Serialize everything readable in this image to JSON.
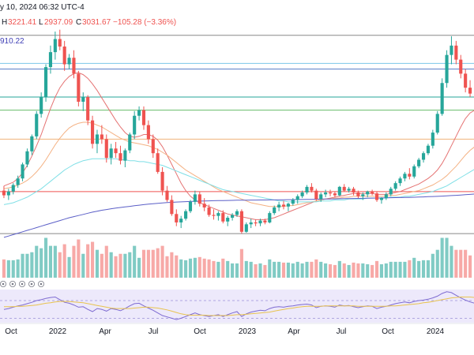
{
  "header": {
    "date_fragment": "y 10, 2024 06:32 UTC-4",
    "h_label": "H",
    "h_value": "3221.41",
    "l_label": "L",
    "l_value": "2937.09",
    "c_label": "C",
    "c_value": "3031.67",
    "change": "−105.28 (−3.36%)",
    "ma_value": "910.22"
  },
  "colors": {
    "up": "#26a69a",
    "down": "#ef5350",
    "vol_up": "#80cbc4",
    "vol_down": "#f7a9a7",
    "ma_red": "#e57373",
    "ma_orange": "#f4b183",
    "ma_cyan": "#7fdfe6",
    "ma_blue": "#5b5fc7",
    "rsi_line": "#7e6bd1",
    "rsi_ma": "#e8c34f",
    "rsi_bg": "#ede9fb"
  },
  "rsi_icons": [
    "eye-icon",
    "eye-icon",
    "eye-icon",
    "eye-icon",
    "eye-icon"
  ],
  "chart_data": {
    "type": "candlestick",
    "title": "",
    "timeframe": "weekly",
    "ylim": [
      1650,
      3800
    ],
    "x_ticks": [
      "Oct",
      "2022",
      "Apr",
      "Jul",
      "Oct",
      "2023",
      "Apr",
      "Jul",
      "Oct",
      "2024"
    ],
    "candles": [
      [
        2100,
        2150,
        2020,
        2050
      ],
      [
        2050,
        2120,
        2000,
        2090
      ],
      [
        2090,
        2180,
        2060,
        2160
      ],
      [
        2160,
        2260,
        2130,
        2230
      ],
      [
        2230,
        2400,
        2200,
        2380
      ],
      [
        2380,
        2550,
        2350,
        2520
      ],
      [
        2520,
        2700,
        2480,
        2680
      ],
      [
        2680,
        2950,
        2650,
        2920
      ],
      [
        2920,
        3150,
        2880,
        3100
      ],
      [
        3100,
        3450,
        3050,
        3420
      ],
      [
        3420,
        3650,
        3350,
        3580
      ],
      [
        3580,
        3800,
        3500,
        3720
      ],
      [
        3720,
        3820,
        3600,
        3640
      ],
      [
        3640,
        3700,
        3380,
        3450
      ],
      [
        3450,
        3560,
        3400,
        3520
      ],
      [
        3520,
        3600,
        3300,
        3350
      ],
      [
        3350,
        3380,
        3000,
        3050
      ],
      [
        3050,
        3150,
        2950,
        3100
      ],
      [
        3100,
        3120,
        2800,
        2850
      ],
      [
        2850,
        2900,
        2550,
        2600
      ],
      [
        2600,
        2750,
        2500,
        2700
      ],
      [
        2700,
        2800,
        2600,
        2650
      ],
      [
        2650,
        2700,
        2400,
        2450
      ],
      [
        2450,
        2600,
        2380,
        2550
      ],
      [
        2550,
        2620,
        2450,
        2500
      ],
      [
        2500,
        2580,
        2380,
        2420
      ],
      [
        2420,
        2550,
        2350,
        2530
      ],
      [
        2530,
        2720,
        2500,
        2700
      ],
      [
        2700,
        2950,
        2650,
        2900
      ],
      [
        2900,
        3000,
        2850,
        2960
      ],
      [
        2960,
        3000,
        2750,
        2800
      ],
      [
        2800,
        2850,
        2600,
        2650
      ],
      [
        2650,
        2700,
        2450,
        2500
      ],
      [
        2500,
        2550,
        2280,
        2300
      ],
      [
        2300,
        2350,
        2050,
        2100
      ],
      [
        2100,
        2150,
        1980,
        2000
      ],
      [
        2000,
        2050,
        1830,
        1850
      ],
      [
        1850,
        1900,
        1720,
        1760
      ],
      [
        1760,
        1830,
        1700,
        1800
      ],
      [
        1800,
        1900,
        1780,
        1880
      ],
      [
        1880,
        2000,
        1860,
        1980
      ],
      [
        1980,
        2100,
        1950,
        2060
      ],
      [
        2060,
        2090,
        1930,
        1960
      ],
      [
        1960,
        2020,
        1880,
        1920
      ],
      [
        1920,
        1950,
        1820,
        1840
      ],
      [
        1840,
        1900,
        1790,
        1830
      ],
      [
        1830,
        1880,
        1780,
        1860
      ],
      [
        1860,
        1890,
        1750,
        1770
      ],
      [
        1770,
        1830,
        1720,
        1810
      ],
      [
        1810,
        1860,
        1780,
        1840
      ],
      [
        1840,
        1900,
        1820,
        1880
      ],
      [
        1880,
        1900,
        1640,
        1660
      ],
      [
        1660,
        1760,
        1650,
        1740
      ],
      [
        1740,
        1800,
        1700,
        1760
      ],
      [
        1760,
        1790,
        1720,
        1750
      ],
      [
        1750,
        1800,
        1720,
        1780
      ],
      [
        1780,
        1800,
        1740,
        1760
      ],
      [
        1760,
        1880,
        1750,
        1860
      ],
      [
        1860,
        1940,
        1840,
        1920
      ],
      [
        1920,
        1980,
        1880,
        1950
      ],
      [
        1950,
        1990,
        1900,
        1930
      ],
      [
        1930,
        1970,
        1880,
        1960
      ],
      [
        1960,
        2020,
        1940,
        2000
      ],
      [
        2000,
        2060,
        1960,
        2040
      ],
      [
        2040,
        2100,
        2020,
        2080
      ],
      [
        2080,
        2160,
        2060,
        2140
      ],
      [
        2140,
        2180,
        2080,
        2100
      ],
      [
        2100,
        2120,
        1990,
        2010
      ],
      [
        2010,
        2080,
        1980,
        2060
      ],
      [
        2060,
        2110,
        2030,
        2080
      ],
      [
        2080,
        2110,
        2040,
        2070
      ],
      [
        2070,
        2090,
        2030,
        2050
      ],
      [
        2050,
        2150,
        2040,
        2140
      ],
      [
        2140,
        2170,
        2090,
        2100
      ],
      [
        2100,
        2140,
        2080,
        2120
      ],
      [
        2120,
        2140,
        2050,
        2080
      ],
      [
        2080,
        2100,
        2020,
        2040
      ],
      [
        2040,
        2080,
        2000,
        2060
      ],
      [
        2060,
        2100,
        2030,
        2090
      ],
      [
        2090,
        2110,
        2050,
        2070
      ],
      [
        2070,
        2090,
        1980,
        2000
      ],
      [
        2000,
        2030,
        1960,
        2020
      ],
      [
        2020,
        2080,
        2000,
        2060
      ],
      [
        2060,
        2140,
        2040,
        2120
      ],
      [
        2120,
        2200,
        2100,
        2180
      ],
      [
        2180,
        2250,
        2150,
        2230
      ],
      [
        2230,
        2300,
        2200,
        2280
      ],
      [
        2280,
        2340,
        2220,
        2250
      ],
      [
        2250,
        2380,
        2230,
        2360
      ],
      [
        2360,
        2450,
        2340,
        2430
      ],
      [
        2430,
        2520,
        2400,
        2500
      ],
      [
        2500,
        2600,
        2480,
        2580
      ],
      [
        2580,
        2750,
        2550,
        2720
      ],
      [
        2720,
        2950,
        2700,
        2920
      ],
      [
        2920,
        3300,
        2900,
        3250
      ],
      [
        3250,
        3600,
        3200,
        3550
      ],
      [
        3550,
        3750,
        3450,
        3650
      ],
      [
        3650,
        3700,
        3450,
        3500
      ],
      [
        3500,
        3550,
        3300,
        3350
      ],
      [
        3350,
        3400,
        3150,
        3200
      ],
      [
        3200,
        3280,
        3100,
        3137
      ]
    ],
    "moving_averages": [
      {
        "color_key": "ma_red",
        "values": [
          2150,
          2170,
          2190,
          2230,
          2290,
          2370,
          2470,
          2580,
          2700,
          2840,
          2980,
          3100,
          3200,
          3270,
          3320,
          3350,
          3360,
          3340,
          3300,
          3240,
          3170,
          3090,
          3010,
          2930,
          2850,
          2780,
          2720,
          2680,
          2670,
          2680,
          2700,
          2700,
          2680,
          2640,
          2570,
          2480,
          2380,
          2280,
          2180,
          2100,
          2040,
          2000,
          1970,
          1950,
          1930,
          1910,
          1890,
          1870,
          1850,
          1840,
          1830,
          1820,
          1810,
          1800,
          1790,
          1790,
          1790,
          1800,
          1810,
          1830,
          1850,
          1870,
          1890,
          1910,
          1930,
          1950,
          1970,
          1990,
          2000,
          2010,
          2020,
          2030,
          2040,
          2050,
          2060,
          2070,
          2070,
          2070,
          2070,
          2070,
          2060,
          2060,
          2060,
          2070,
          2080,
          2090,
          2110,
          2130,
          2150,
          2170,
          2200,
          2230,
          2270,
          2320,
          2390,
          2480,
          2580,
          2680,
          2780,
          2870,
          2930,
          2960
        ]
      },
      {
        "color_key": "ma_orange",
        "values": [
          2120,
          2130,
          2140,
          2160,
          2180,
          2210,
          2250,
          2300,
          2360,
          2430,
          2510,
          2590,
          2660,
          2720,
          2770,
          2800,
          2820,
          2830,
          2830,
          2820,
          2800,
          2780,
          2750,
          2720,
          2690,
          2660,
          2640,
          2620,
          2610,
          2600,
          2590,
          2580,
          2560,
          2540,
          2510,
          2480,
          2440,
          2400,
          2360,
          2320,
          2290,
          2260,
          2230,
          2200,
          2170,
          2140,
          2110,
          2090,
          2070,
          2050,
          2030,
          2010,
          1990,
          1970,
          1960,
          1950,
          1940,
          1930,
          1930,
          1930,
          1930,
          1940,
          1940,
          1950,
          1960,
          1970,
          1980,
          1990,
          2000,
          2010,
          2010,
          2020,
          2020,
          2030,
          2030,
          2040,
          2040,
          2040,
          2040,
          2040,
          2040,
          2040,
          2040,
          2050,
          2050,
          2060,
          2070,
          2080,
          2090,
          2100,
          2120,
          2140,
          2160,
          2190,
          2220,
          2260,
          2310,
          2360,
          2420,
          2480,
          2530,
          2570
        ]
      },
      {
        "color_key": "ma_cyan",
        "values": [
          1950,
          1960,
          1970,
          1990,
          2010,
          2030,
          2060,
          2090,
          2120,
          2160,
          2200,
          2240,
          2280,
          2320,
          2350,
          2380,
          2400,
          2420,
          2430,
          2440,
          2440,
          2440,
          2440,
          2440,
          2440,
          2430,
          2430,
          2420,
          2420,
          2410,
          2410,
          2400,
          2390,
          2380,
          2370,
          2350,
          2330,
          2310,
          2290,
          2270,
          2250,
          2230,
          2210,
          2190,
          2170,
          2150,
          2130,
          2110,
          2100,
          2090,
          2080,
          2070,
          2060,
          2050,
          2040,
          2030,
          2020,
          2010,
          2000,
          1990,
          1990,
          1980,
          1980,
          1980,
          1980,
          1980,
          1980,
          1980,
          1990,
          1990,
          1990,
          2000,
          2000,
          2000,
          2010,
          2010,
          2010,
          2010,
          2020,
          2020,
          2020,
          2020,
          2020,
          2030,
          2030,
          2030,
          2040,
          2040,
          2050,
          2060,
          2070,
          2080,
          2090,
          2110,
          2130,
          2150,
          2180,
          2210,
          2240,
          2270,
          2300,
          2330
        ]
      },
      {
        "color_key": "ma_blue",
        "values": [
          1600,
          1615,
          1630,
          1645,
          1660,
          1675,
          1690,
          1705,
          1720,
          1735,
          1750,
          1765,
          1780,
          1795,
          1810,
          1822,
          1834,
          1846,
          1858,
          1870,
          1880,
          1890,
          1898,
          1906,
          1914,
          1920,
          1926,
          1932,
          1938,
          1944,
          1950,
          1955,
          1960,
          1964,
          1968,
          1972,
          1975,
          1978,
          1980,
          1982,
          1984,
          1986,
          1988,
          1990,
          1991,
          1992,
          1993,
          1994,
          1995,
          1996,
          1997,
          1998,
          1998,
          1999,
          1999,
          2000,
          2000,
          2001,
          2001,
          2002,
          2002,
          2003,
          2003,
          2004,
          2005,
          2006,
          2007,
          2008,
          2009,
          2010,
          2011,
          2012,
          2013,
          2014,
          2015,
          2016,
          2017,
          2018,
          2019,
          2020,
          2021,
          2022,
          2023,
          2024,
          2025,
          2026,
          2027,
          2028,
          2029,
          2031,
          2033,
          2035,
          2037,
          2039,
          2041,
          2044,
          2047,
          2050,
          2053,
          2056,
          2060,
          2064
        ]
      }
    ],
    "horizontal_levels": [
      {
        "value": 3760,
        "color": "#888888"
      },
      {
        "value": 3460,
        "color": "#7cc7e8"
      },
      {
        "value": 3400,
        "color": "#5b7fc7"
      },
      {
        "value": 3100,
        "color": "#26a69a"
      },
      {
        "value": 2960,
        "color": "#66bb6a"
      },
      {
        "value": 2650,
        "color": "#f0b27a"
      },
      {
        "value": 2090,
        "color": "#ef5350"
      },
      {
        "value": 1640,
        "color": "#888888"
      }
    ],
    "rsi": [
      50,
      52,
      55,
      58,
      60,
      63,
      66,
      70,
      72,
      75,
      77,
      78,
      72,
      66,
      64,
      60,
      55,
      56,
      50,
      45,
      52,
      50,
      46,
      52,
      50,
      47,
      52,
      58,
      63,
      64,
      58,
      53,
      48,
      42,
      36,
      33,
      30,
      27,
      30,
      34,
      38,
      42,
      38,
      36,
      34,
      36,
      38,
      34,
      38,
      42,
      45,
      34,
      40,
      44,
      46,
      48,
      47,
      52,
      55,
      56,
      55,
      57,
      58,
      60,
      61,
      62,
      60,
      54,
      57,
      58,
      57,
      55,
      60,
      58,
      59,
      56,
      54,
      56,
      58,
      57,
      52,
      55,
      57,
      60,
      63,
      65,
      67,
      65,
      68,
      70,
      71,
      73,
      76,
      80,
      86,
      90,
      88,
      82,
      76,
      71,
      67,
      64
    ],
    "rsi_ma": [
      56,
      56,
      56,
      57,
      57,
      58,
      59,
      60,
      62,
      64,
      65,
      67,
      68,
      68,
      68,
      67,
      66,
      65,
      63,
      61,
      59,
      57,
      55,
      53,
      52,
      52,
      52,
      52,
      53,
      54,
      55,
      55,
      54,
      53,
      51,
      49,
      46,
      43,
      40,
      38,
      37,
      37,
      37,
      37,
      36,
      36,
      36,
      36,
      36,
      37,
      38,
      38,
      39,
      40,
      41,
      42,
      43,
      44,
      46,
      48,
      50,
      52,
      53,
      55,
      56,
      57,
      57,
      57,
      57,
      58,
      58,
      58,
      58,
      58,
      58,
      58,
      57,
      57,
      57,
      57,
      57,
      57,
      57,
      58,
      58,
      59,
      60,
      61,
      62,
      63,
      65,
      66,
      68,
      70,
      72,
      74,
      76,
      77,
      78,
      78,
      78,
      77
    ],
    "rsi_levels": [
      70,
      30
    ]
  }
}
